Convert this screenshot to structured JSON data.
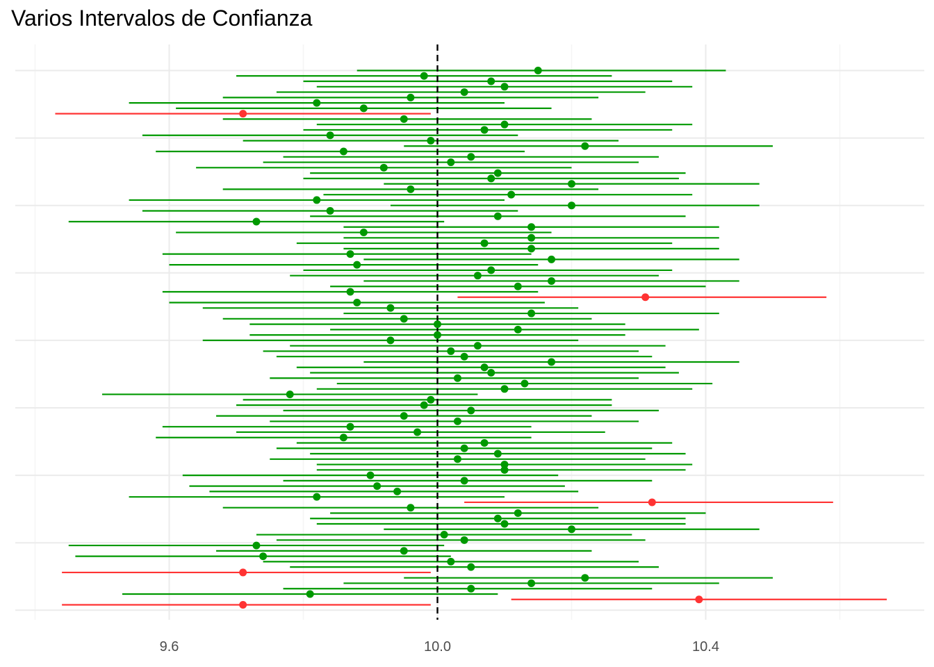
{
  "chart_data": {
    "type": "scatter",
    "subtype": "confidence-interval-forest",
    "title": "Varios Intervalos de Confianza",
    "xlabel": "",
    "ylabel": "",
    "xlim": [
      9.42,
      10.72
    ],
    "x_ticks": [
      9.6,
      10.0,
      10.4
    ],
    "x_tick_labels": [
      "9.6",
      "10.0",
      "10.4"
    ],
    "reference_line": {
      "x": 10.0,
      "style": "dashed",
      "color": "#000000"
    },
    "grid": true,
    "y_tick_labels_visible": false,
    "colors": {
      "contains_mean": "#009900",
      "misses_mean": "#ff3333",
      "grid_major": "#ebebeb",
      "grid_minor": "#f5f5f5"
    },
    "intervals": [
      {
        "mean": 10.15,
        "lower": 9.88,
        "upper": 10.43,
        "covers": true
      },
      {
        "mean": 9.98,
        "lower": 9.7,
        "upper": 10.26,
        "covers": true
      },
      {
        "mean": 10.08,
        "lower": 9.8,
        "upper": 10.35,
        "covers": true
      },
      {
        "mean": 10.1,
        "lower": 9.82,
        "upper": 10.38,
        "covers": true
      },
      {
        "mean": 10.04,
        "lower": 9.76,
        "upper": 10.31,
        "covers": true
      },
      {
        "mean": 9.96,
        "lower": 9.68,
        "upper": 10.24,
        "covers": true
      },
      {
        "mean": 9.82,
        "lower": 9.54,
        "upper": 10.1,
        "covers": true
      },
      {
        "mean": 9.89,
        "lower": 9.61,
        "upper": 10.17,
        "covers": true
      },
      {
        "mean": 9.71,
        "lower": 9.43,
        "upper": 9.99,
        "covers": false
      },
      {
        "mean": 9.95,
        "lower": 9.68,
        "upper": 10.23,
        "covers": true
      },
      {
        "mean": 10.1,
        "lower": 9.82,
        "upper": 10.38,
        "covers": true
      },
      {
        "mean": 10.07,
        "lower": 9.8,
        "upper": 10.35,
        "covers": true
      },
      {
        "mean": 9.84,
        "lower": 9.56,
        "upper": 10.12,
        "covers": true
      },
      {
        "mean": 9.99,
        "lower": 9.71,
        "upper": 10.27,
        "covers": true
      },
      {
        "mean": 10.22,
        "lower": 9.95,
        "upper": 10.5,
        "covers": true
      },
      {
        "mean": 9.86,
        "lower": 9.58,
        "upper": 10.13,
        "covers": true
      },
      {
        "mean": 10.05,
        "lower": 9.77,
        "upper": 10.33,
        "covers": true
      },
      {
        "mean": 10.02,
        "lower": 9.74,
        "upper": 10.3,
        "covers": true
      },
      {
        "mean": 9.92,
        "lower": 9.64,
        "upper": 10.2,
        "covers": true
      },
      {
        "mean": 10.09,
        "lower": 9.81,
        "upper": 10.37,
        "covers": true
      },
      {
        "mean": 10.08,
        "lower": 9.8,
        "upper": 10.36,
        "covers": true
      },
      {
        "mean": 10.2,
        "lower": 9.92,
        "upper": 10.48,
        "covers": true
      },
      {
        "mean": 9.96,
        "lower": 9.68,
        "upper": 10.24,
        "covers": true
      },
      {
        "mean": 10.11,
        "lower": 9.83,
        "upper": 10.38,
        "covers": true
      },
      {
        "mean": 9.82,
        "lower": 9.54,
        "upper": 10.1,
        "covers": true
      },
      {
        "mean": 10.2,
        "lower": 9.93,
        "upper": 10.48,
        "covers": true
      },
      {
        "mean": 9.84,
        "lower": 9.56,
        "upper": 10.12,
        "covers": true
      },
      {
        "mean": 10.09,
        "lower": 9.81,
        "upper": 10.37,
        "covers": true
      },
      {
        "mean": 9.73,
        "lower": 9.45,
        "upper": 10.01,
        "covers": true
      },
      {
        "mean": 10.14,
        "lower": 9.86,
        "upper": 10.42,
        "covers": true
      },
      {
        "mean": 9.89,
        "lower": 9.61,
        "upper": 10.17,
        "covers": true
      },
      {
        "mean": 10.14,
        "lower": 9.86,
        "upper": 10.42,
        "covers": true
      },
      {
        "mean": 10.07,
        "lower": 9.79,
        "upper": 10.35,
        "covers": true
      },
      {
        "mean": 10.14,
        "lower": 9.86,
        "upper": 10.42,
        "covers": true
      },
      {
        "mean": 9.87,
        "lower": 9.59,
        "upper": 10.14,
        "covers": true
      },
      {
        "mean": 10.17,
        "lower": 9.89,
        "upper": 10.45,
        "covers": true
      },
      {
        "mean": 9.88,
        "lower": 9.6,
        "upper": 10.15,
        "covers": true
      },
      {
        "mean": 10.08,
        "lower": 9.8,
        "upper": 10.35,
        "covers": true
      },
      {
        "mean": 10.06,
        "lower": 9.78,
        "upper": 10.33,
        "covers": true
      },
      {
        "mean": 10.17,
        "lower": 9.89,
        "upper": 10.45,
        "covers": true
      },
      {
        "mean": 10.12,
        "lower": 9.84,
        "upper": 10.4,
        "covers": true
      },
      {
        "mean": 9.87,
        "lower": 9.59,
        "upper": 10.15,
        "covers": true
      },
      {
        "mean": 10.31,
        "lower": 10.03,
        "upper": 10.58,
        "covers": false
      },
      {
        "mean": 9.88,
        "lower": 9.6,
        "upper": 10.16,
        "covers": true
      },
      {
        "mean": 9.93,
        "lower": 9.65,
        "upper": 10.21,
        "covers": true
      },
      {
        "mean": 10.14,
        "lower": 9.86,
        "upper": 10.42,
        "covers": true
      },
      {
        "mean": 9.95,
        "lower": 9.68,
        "upper": 10.23,
        "covers": true
      },
      {
        "mean": 10.0,
        "lower": 9.72,
        "upper": 10.28,
        "covers": true
      },
      {
        "mean": 10.12,
        "lower": 9.84,
        "upper": 10.39,
        "covers": true
      },
      {
        "mean": 10.0,
        "lower": 9.72,
        "upper": 10.28,
        "covers": true
      },
      {
        "mean": 9.93,
        "lower": 9.65,
        "upper": 10.21,
        "covers": true
      },
      {
        "mean": 10.06,
        "lower": 9.78,
        "upper": 10.34,
        "covers": true
      },
      {
        "mean": 10.02,
        "lower": 9.74,
        "upper": 10.3,
        "covers": true
      },
      {
        "mean": 10.04,
        "lower": 9.76,
        "upper": 10.32,
        "covers": true
      },
      {
        "mean": 10.17,
        "lower": 9.89,
        "upper": 10.45,
        "covers": true
      },
      {
        "mean": 10.07,
        "lower": 9.79,
        "upper": 10.34,
        "covers": true
      },
      {
        "mean": 10.08,
        "lower": 9.81,
        "upper": 10.36,
        "covers": true
      },
      {
        "mean": 10.03,
        "lower": 9.75,
        "upper": 10.3,
        "covers": true
      },
      {
        "mean": 10.13,
        "lower": 9.85,
        "upper": 10.41,
        "covers": true
      },
      {
        "mean": 10.1,
        "lower": 9.82,
        "upper": 10.38,
        "covers": true
      },
      {
        "mean": 9.78,
        "lower": 9.5,
        "upper": 10.06,
        "covers": true
      },
      {
        "mean": 9.99,
        "lower": 9.71,
        "upper": 10.26,
        "covers": true
      },
      {
        "mean": 9.98,
        "lower": 9.7,
        "upper": 10.26,
        "covers": true
      },
      {
        "mean": 10.05,
        "lower": 9.77,
        "upper": 10.33,
        "covers": true
      },
      {
        "mean": 9.95,
        "lower": 9.67,
        "upper": 10.23,
        "covers": true
      },
      {
        "mean": 10.03,
        "lower": 9.75,
        "upper": 10.3,
        "covers": true
      },
      {
        "mean": 9.87,
        "lower": 9.59,
        "upper": 10.14,
        "covers": true
      },
      {
        "mean": 9.97,
        "lower": 9.7,
        "upper": 10.25,
        "covers": true
      },
      {
        "mean": 9.86,
        "lower": 9.58,
        "upper": 10.14,
        "covers": true
      },
      {
        "mean": 10.07,
        "lower": 9.79,
        "upper": 10.35,
        "covers": true
      },
      {
        "mean": 10.04,
        "lower": 9.76,
        "upper": 10.32,
        "covers": true
      },
      {
        "mean": 10.09,
        "lower": 9.81,
        "upper": 10.37,
        "covers": true
      },
      {
        "mean": 10.03,
        "lower": 9.75,
        "upper": 10.31,
        "covers": true
      },
      {
        "mean": 10.1,
        "lower": 9.82,
        "upper": 10.38,
        "covers": true
      },
      {
        "mean": 10.1,
        "lower": 9.82,
        "upper": 10.37,
        "covers": true
      },
      {
        "mean": 9.9,
        "lower": 9.62,
        "upper": 10.18,
        "covers": true
      },
      {
        "mean": 10.04,
        "lower": 9.77,
        "upper": 10.32,
        "covers": true
      },
      {
        "mean": 9.91,
        "lower": 9.63,
        "upper": 10.19,
        "covers": true
      },
      {
        "mean": 9.94,
        "lower": 9.66,
        "upper": 10.21,
        "covers": true
      },
      {
        "mean": 9.82,
        "lower": 9.54,
        "upper": 10.1,
        "covers": true
      },
      {
        "mean": 10.32,
        "lower": 10.04,
        "upper": 10.59,
        "covers": false
      },
      {
        "mean": 9.96,
        "lower": 9.68,
        "upper": 10.24,
        "covers": true
      },
      {
        "mean": 10.12,
        "lower": 9.84,
        "upper": 10.4,
        "covers": true
      },
      {
        "mean": 10.09,
        "lower": 9.81,
        "upper": 10.37,
        "covers": true
      },
      {
        "mean": 10.1,
        "lower": 9.82,
        "upper": 10.37,
        "covers": true
      },
      {
        "mean": 10.2,
        "lower": 9.92,
        "upper": 10.48,
        "covers": true
      },
      {
        "mean": 10.01,
        "lower": 9.73,
        "upper": 10.29,
        "covers": true
      },
      {
        "mean": 10.04,
        "lower": 9.76,
        "upper": 10.31,
        "covers": true
      },
      {
        "mean": 9.73,
        "lower": 9.45,
        "upper": 10.01,
        "covers": true
      },
      {
        "mean": 9.95,
        "lower": 9.67,
        "upper": 10.23,
        "covers": true
      },
      {
        "mean": 9.74,
        "lower": 9.46,
        "upper": 10.02,
        "covers": true
      },
      {
        "mean": 10.02,
        "lower": 9.74,
        "upper": 10.3,
        "covers": true
      },
      {
        "mean": 10.05,
        "lower": 9.78,
        "upper": 10.33,
        "covers": true
      },
      {
        "mean": 9.71,
        "lower": 9.44,
        "upper": 9.99,
        "covers": false
      },
      {
        "mean": 10.22,
        "lower": 9.95,
        "upper": 10.5,
        "covers": true
      },
      {
        "mean": 10.14,
        "lower": 9.86,
        "upper": 10.42,
        "covers": true
      },
      {
        "mean": 10.05,
        "lower": 9.77,
        "upper": 10.32,
        "covers": true
      },
      {
        "mean": 9.81,
        "lower": 9.53,
        "upper": 10.09,
        "covers": true
      },
      {
        "mean": 10.39,
        "lower": 10.11,
        "upper": 10.67,
        "covers": false
      },
      {
        "mean": 9.71,
        "lower": 9.44,
        "upper": 9.99,
        "covers": false
      }
    ]
  }
}
